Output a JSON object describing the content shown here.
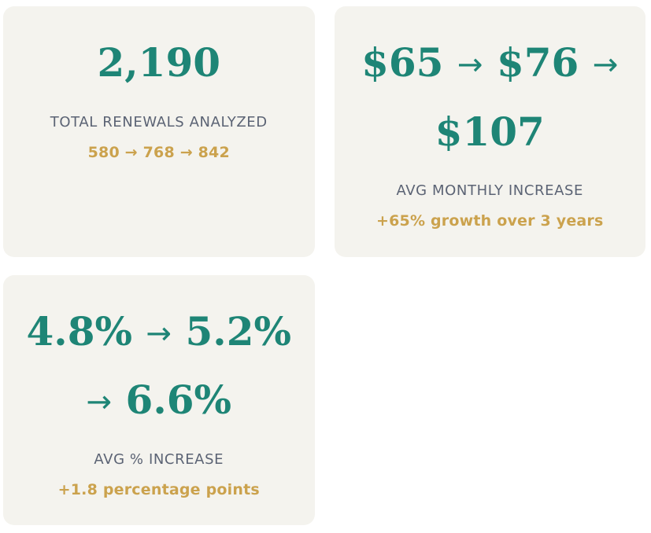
{
  "theme": {
    "page_bg": "#ffffff",
    "card_bg": "#f4f3ee",
    "value_color": "#1e8576",
    "label_color": "#5b6374",
    "accent_color": "#cba24d"
  },
  "cards": [
    {
      "id": "total-renewals",
      "value_lines": [
        "2,190"
      ],
      "label": "TOTAL RENEWALS ANALYZED",
      "detail": "580 → 768 → 842"
    },
    {
      "id": "avg-monthly-increase",
      "value_lines": [
        "$65 → $76 →",
        "$107"
      ],
      "label": "AVG MONTHLY INCREASE",
      "detail": "+65% growth over 3 years"
    },
    {
      "id": "avg-percent-increase",
      "value_lines": [
        "4.8% → 5.2%",
        "→ 6.6%"
      ],
      "label": "AVG % INCREASE",
      "detail": "+1.8 percentage points"
    }
  ]
}
